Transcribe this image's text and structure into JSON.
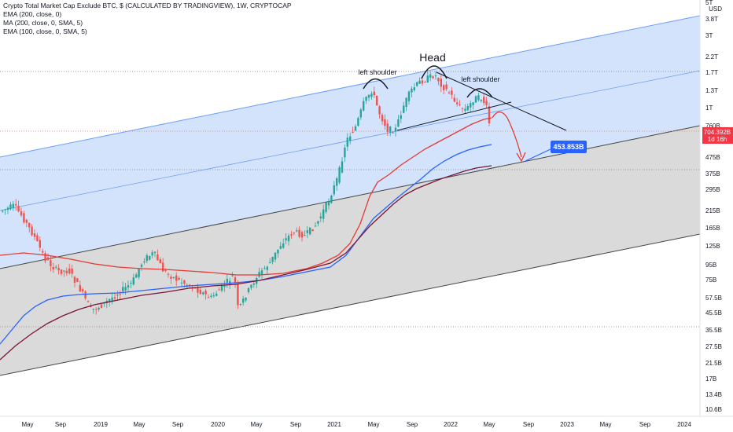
{
  "legend": {
    "title": "Crypto Total Market Cap Exclude BTC, $ (CALCULATED BY TRADINGVIEW), 1W, CRYPTOCAP",
    "lines": [
      "EMA (200, close, 0)",
      "MA (200, close, 0, SMA, 5)",
      "EMA (100, close, 0, SMA, 5)"
    ]
  },
  "price_axis": {
    "currency": "USD",
    "ticks": [
      "5T",
      "3.8T",
      "3T",
      "2.2T",
      "1.7T",
      "1.3T",
      "1T",
      "760B",
      "475B",
      "375B",
      "295B",
      "215B",
      "165B",
      "125B",
      "95B",
      "75B",
      "57.5B",
      "45.5B",
      "35.5B",
      "27.5B",
      "21.5B",
      "17B",
      "13.4B",
      "10.6B"
    ],
    "current_price": "704.392B",
    "countdown": "1d 16h",
    "target_label": "453.853B"
  },
  "time_axis": {
    "ticks": [
      "May",
      "Sep",
      "2019",
      "May",
      "Sep",
      "2020",
      "May",
      "Sep",
      "2021",
      "May",
      "Sep",
      "2022",
      "May",
      "Sep",
      "2023",
      "May",
      "Sep",
      "2024"
    ]
  },
  "annotations": {
    "head": "Head",
    "left_shoulder_1": "left shoulder",
    "left_shoulder_2": "left shoulder"
  },
  "colors": {
    "up": "#26a69a",
    "down": "#ef5350",
    "ema200": "#7b1535",
    "ma200": "#2962ff",
    "ema100": "#e53935",
    "channel_upper_fill": "#cfe0fc",
    "channel_lower_fill": "#d6d6d6",
    "price_tag": "#f23645",
    "target_tag": "#2962ff"
  },
  "chart_data": {
    "type": "candlestick",
    "series_summary": "weekly total crypto market cap excluding BTC, log scale",
    "x_start": "2018-05",
    "x_end": "2024-02",
    "ylim": [
      "10.6B",
      "5T"
    ],
    "log_scale": true,
    "last_close": "704.392B",
    "projection_target": "453.853B",
    "indicators": [
      "EMA (200, close, 0)",
      "MA (200, close, 0, SMA, 5)",
      "EMA (100, close, 0, SMA, 5)"
    ]
  }
}
